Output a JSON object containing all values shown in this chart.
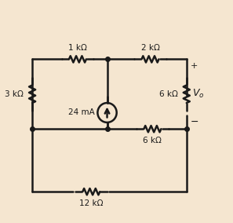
{
  "bg_color": "#f5e6d0",
  "line_color": "#1a1a1a",
  "line_width": 1.8,
  "fig_width": 2.97,
  "fig_height": 2.84,
  "labels": {
    "1kohm": "1 kΩ",
    "2kohm": "2 kΩ",
    "3kohm": "3 kΩ",
    "6kohm_right": "6 kΩ",
    "6kohm_mid": "6 kΩ",
    "12kohm": "12 kΩ",
    "24mA": "24 mA",
    "Vo": "V_o",
    "plus": "+",
    "minus": "−"
  }
}
